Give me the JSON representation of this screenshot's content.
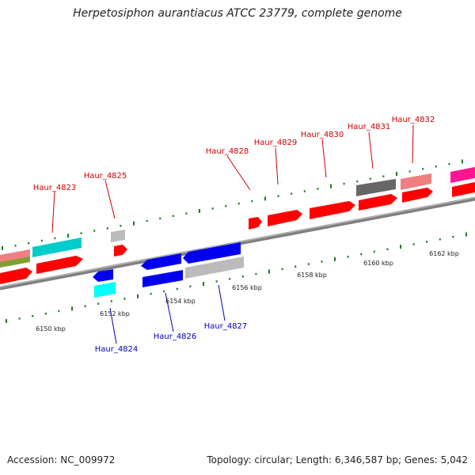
{
  "title": "Herpetosiphon aurantiacus ATCC 23779, complete genome",
  "accession": "Accession: NC_009972",
  "topology": "Topology: circular; Length: 6,346,587 bp; Genes: 5,042",
  "colors": {
    "backbone": "#7f7f7f",
    "tick": "#1f7a1f",
    "forward_label": "#cc0000",
    "reverse_label": "#0000bb",
    "kbp_label": "#222222"
  },
  "scale_labels": [
    "6150 kbp",
    "6152 kbp",
    "6154 kbp",
    "6156 kbp",
    "6158 kbp",
    "6160 kbp",
    "6162 kbp"
  ],
  "gene_labels": {
    "forward": [
      "Haur_4823",
      "Haur_4825",
      "Haur_4828",
      "Haur_4829",
      "Haur_4830",
      "Haur_4831",
      "Haur_4832"
    ],
    "reverse": [
      "Haur_4824",
      "Haur_4826",
      "Haur_4827"
    ]
  },
  "gene_colors": [
    "#ff0000",
    "#00cccc",
    "#7f9f2f",
    "#f08080",
    "#bbbbbb",
    "#666666",
    "#ff1493",
    "#0000ee",
    "#00ffff"
  ]
}
